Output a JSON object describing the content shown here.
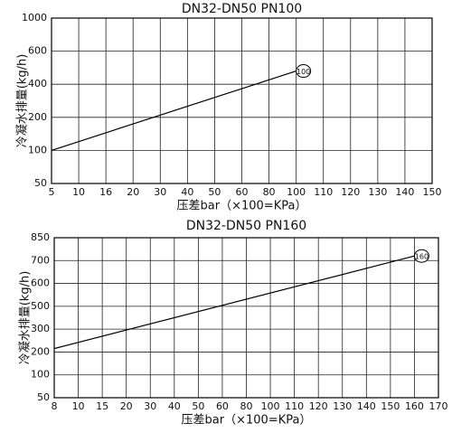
{
  "chart_data": [
    {
      "type": "line",
      "title": "DN32-DN50 PN100",
      "x_label": "压差bar（×100=KPa）",
      "y_label": "冷凝水排量(kg/h)",
      "scale": "tick-spaced",
      "xlim": [
        5,
        150
      ],
      "xticks": [
        5,
        10,
        16,
        20,
        30,
        40,
        50,
        60,
        80,
        100,
        110,
        120,
        130,
        140,
        150
      ],
      "ylim": [
        50,
        1000
      ],
      "yticks": [
        50,
        100,
        200,
        400,
        600,
        1000
      ],
      "x": [
        5,
        100
      ],
      "series": [
        {
          "name": "100",
          "color": "#000000",
          "values": [
            100,
            480
          ]
        }
      ],
      "grid": true
    },
    {
      "type": "line",
      "title": "DN32-DN50 PN160",
      "x_label": "压差bar（×100=KPa）",
      "y_label": "冷凝水排量(kg/h)",
      "scale": "tick-spaced",
      "xlim": [
        8,
        170
      ],
      "xticks": [
        8,
        10,
        15,
        20,
        30,
        40,
        50,
        60,
        80,
        100,
        110,
        120,
        130,
        140,
        150,
        160,
        170
      ],
      "ylim": [
        50,
        850
      ],
      "yticks": [
        50,
        100,
        200,
        300,
        500,
        600,
        700,
        850
      ],
      "x": [
        8,
        160
      ],
      "series": [
        {
          "name": "160",
          "color": "#000000",
          "values": [
            215,
            730
          ]
        }
      ],
      "grid": true
    }
  ]
}
